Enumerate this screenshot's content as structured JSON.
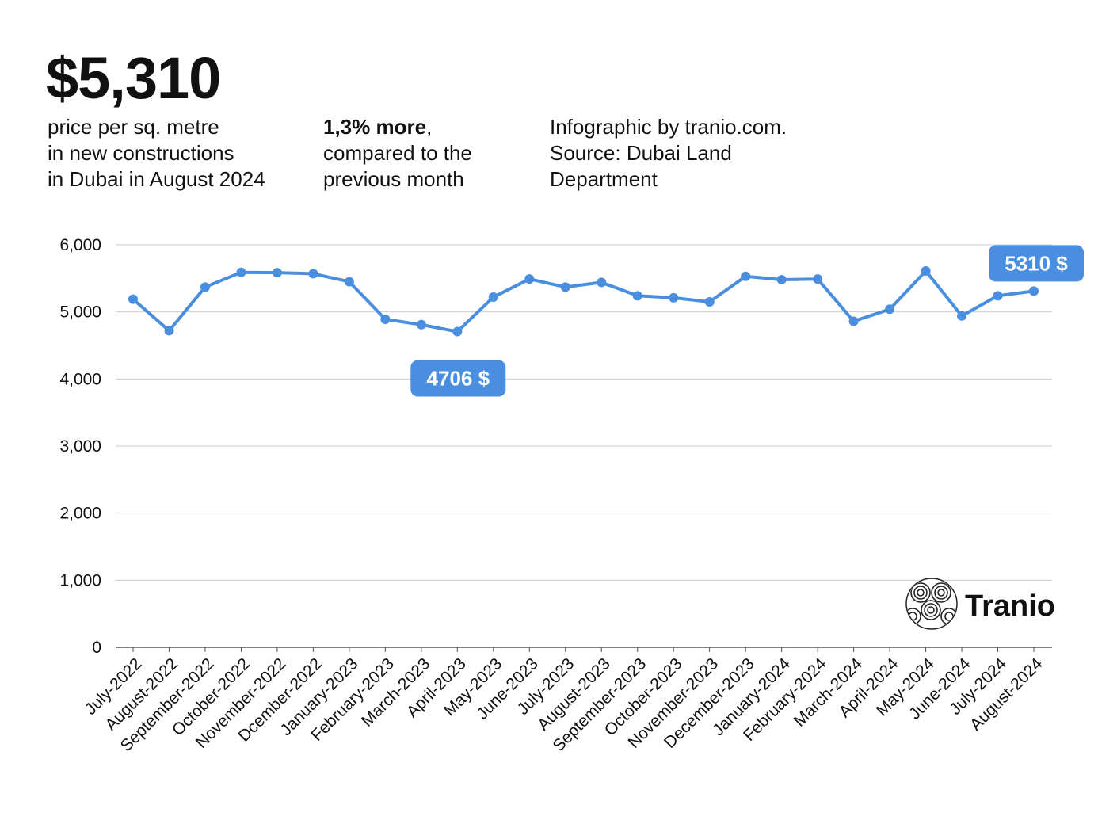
{
  "header": {
    "headline": "$5,310",
    "left_lines": [
      "price per sq. metre",
      "in new constructions",
      "in Dubai in August 2024"
    ],
    "mid_bold": "1,3% more",
    "mid_rest": ",",
    "mid_lines": [
      "compared to the",
      "previous month"
    ],
    "right_lines": [
      "Infographic by tranio.com.",
      "Source: Dubai Land",
      "Department"
    ]
  },
  "logo": {
    "text": "Tranio",
    "icon": "swirl-globe-icon"
  },
  "colors": {
    "line": "#4a8ee0",
    "callout": "#4a8ee0",
    "grid": "#cccccc",
    "axis": "#555555"
  },
  "chart_data": {
    "type": "line",
    "title": "",
    "xlabel": "",
    "ylabel": "",
    "ylim": [
      0,
      6000
    ],
    "yticks": [
      0,
      1000,
      2000,
      3000,
      4000,
      5000,
      6000
    ],
    "ytick_labels": [
      "0",
      "1,000",
      "2,000",
      "3,000",
      "4,000",
      "5,000",
      "6,000"
    ],
    "grid": true,
    "categories": [
      "July-2022",
      "August-2022",
      "September-2022",
      "October-2022",
      "November-2022",
      "Dcember-2022",
      "January-2023",
      "February-2023",
      "March-2023",
      "April-2023",
      "May-2023",
      "June-2023",
      "July-2023",
      "August-2023",
      "September-2023",
      "October-2023",
      "November-2023",
      "December-2023",
      "January-2024",
      "February-2024",
      "March-2024",
      "April-2024",
      "May-2024",
      "June-2024",
      "July-2024",
      "August-2024"
    ],
    "series": [
      {
        "values": [
          5190,
          4720,
          5370,
          5590,
          5585,
          5570,
          5450,
          4890,
          4810,
          4706,
          5220,
          5490,
          5370,
          5440,
          5240,
          5210,
          5150,
          5530,
          5480,
          5490,
          4860,
          5040,
          5610,
          4940,
          5240,
          5310
        ]
      }
    ],
    "annotations": [
      {
        "index": 9,
        "label": "4706 $",
        "placement": "below"
      },
      {
        "index": 25,
        "label": "5310 $",
        "placement": "above"
      }
    ]
  }
}
